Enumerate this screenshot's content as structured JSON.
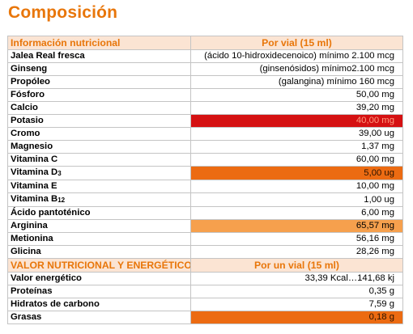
{
  "title": "Composición",
  "header1": {
    "label": "Información nutricional",
    "value": "Por vial (15 ml)"
  },
  "rows1": [
    {
      "name": "Jalea Real fresca",
      "value": "(ácido 10-hidroxidecenoico) mínimo 2.100   mcg"
    },
    {
      "name": "Ginseng",
      "value": "(ginsenósidos) mínimo2.100   mcg"
    },
    {
      "name": "Propóleo",
      "value": "(galangina) mínimo   160   mcg"
    },
    {
      "name": "Fósforo",
      "value": "50,00   mg"
    },
    {
      "name": "Calcio",
      "value": "39,20   mg"
    },
    {
      "name": "Potasio",
      "value": "40,00   mg"
    },
    {
      "name": "Cromo",
      "value": "39,00   ug"
    },
    {
      "name": "Magnesio",
      "value": "1,37 mg"
    },
    {
      "name": "Vitamina C",
      "value": "60,00 mg"
    },
    {
      "name": "Vitamina D",
      "sub": "3",
      "value": "5,00   ug"
    },
    {
      "name": "Vitamina E",
      "value": "10,00 mg"
    },
    {
      "name": "Vitamina B",
      "sub": "12",
      "value": "1,00   ug"
    },
    {
      "name": "Ácido pantoténico",
      "value": "6,00 mg"
    },
    {
      "name": "Arginina",
      "value": "65,57   mg"
    },
    {
      "name": "Metionina",
      "value": "56,16   mg"
    },
    {
      "name": "Glicina",
      "value": "28,26   mg"
    }
  ],
  "header2": {
    "label": "VALOR NUTRICIONAL Y ENERGÉTICO",
    "value": "Por un vial (15 ml)"
  },
  "rows2": [
    {
      "name": "Valor energético",
      "value": "33,39 Kcal…141,68 kj"
    },
    {
      "name": "Proteínas",
      "value": "0,35 g"
    },
    {
      "name": "Hidratos de carbono",
      "value": "7,59 g"
    },
    {
      "name": "Grasas",
      "value": "0,18 g"
    }
  ],
  "colors": {
    "title": "#e8760a",
    "header_bg": "#fbe4d3",
    "red": "#d51112",
    "orange": "#ec6b12",
    "light_orange": "#f6a04d"
  }
}
